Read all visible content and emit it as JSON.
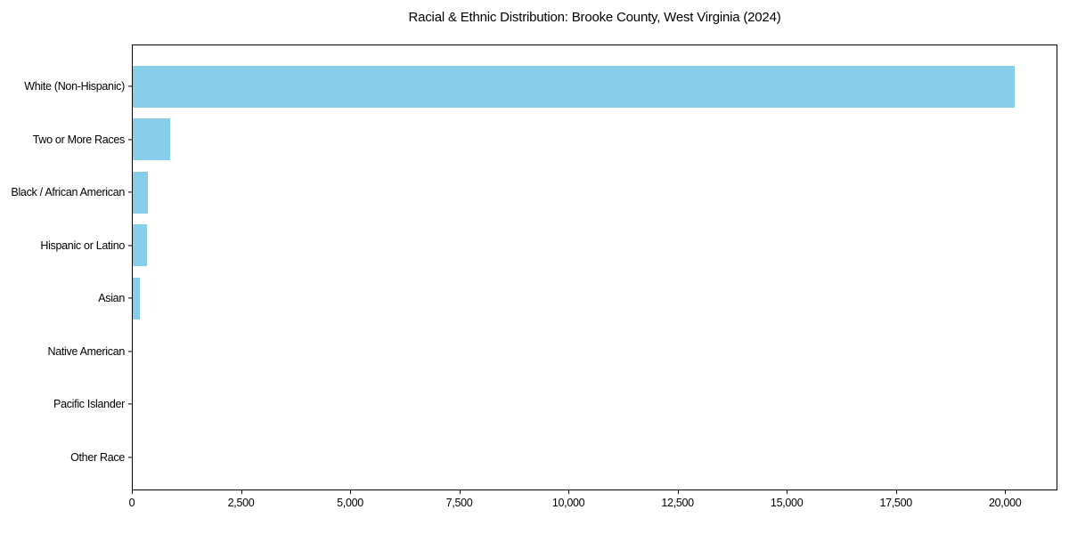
{
  "chart_data": {
    "type": "bar",
    "orientation": "horizontal",
    "title": "Racial & Ethnic Distribution: Brooke County, West Virginia (2024)",
    "xlabel": "",
    "ylabel": "",
    "categories": [
      "White (Non-Hispanic)",
      "Two or More Races",
      "Black / African American",
      "Hispanic or Latino",
      "Asian",
      "Native American",
      "Pacific Islander",
      "Other Race"
    ],
    "values": [
      20190,
      860,
      335,
      330,
      150,
      0,
      0,
      0
    ],
    "xlim": [
      0,
      21200
    ],
    "xticks": [
      0,
      2500,
      5000,
      7500,
      10000,
      12500,
      15000,
      17500,
      20000
    ],
    "xtick_labels": [
      "0",
      "2,500",
      "5,000",
      "7,500",
      "10,000",
      "12,500",
      "15,000",
      "17,500",
      "20,000"
    ],
    "bar_color": "#87CEEB",
    "grid": false,
    "legend": null
  }
}
